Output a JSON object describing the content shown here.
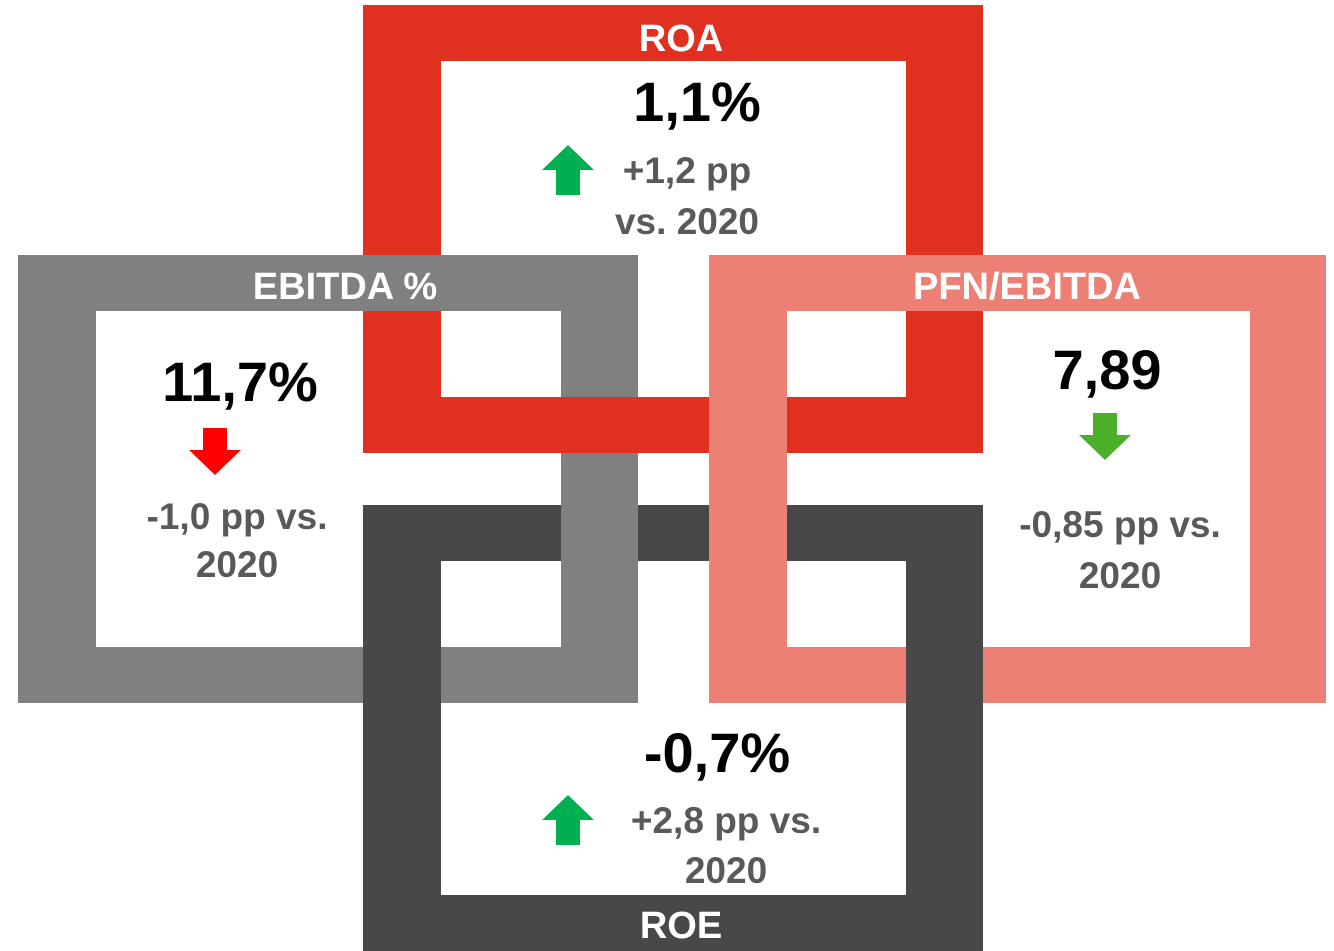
{
  "cards": [
    {
      "title": "ROA",
      "value": "1,1%",
      "change": [
        "+1,2 pp",
        "vs. 2020"
      ]
    },
    {
      "title": "EBITDA %",
      "value": "11,7%",
      "change": [
        "-1,0 pp vs.",
        "2020"
      ]
    },
    {
      "title": "PFN/EBITDA",
      "value": "7,89",
      "change": [
        "-0,85 pp vs.",
        "2020"
      ]
    },
    {
      "title": "ROE",
      "value": "-0,7%",
      "change": [
        "+2,8 pp vs.",
        "2020"
      ]
    }
  ]
}
